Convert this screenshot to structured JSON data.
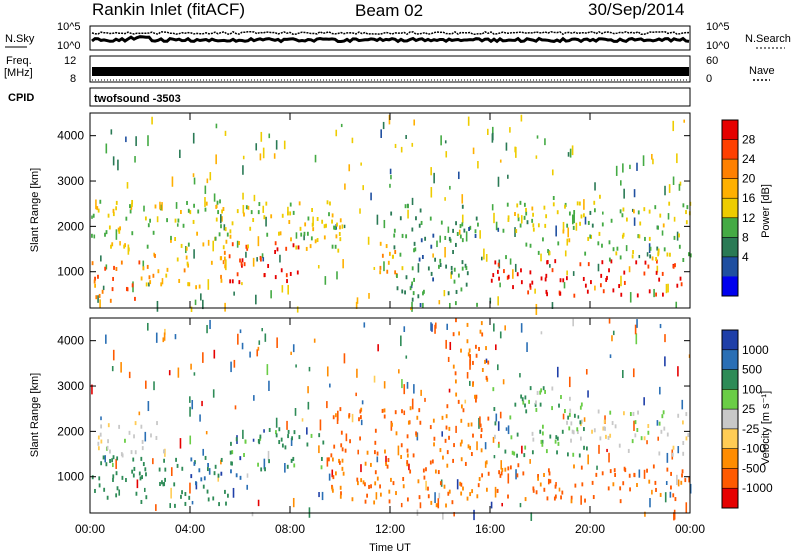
{
  "header": {
    "station": "Rankin Inlet (fitACF)",
    "beam": "Beam 02",
    "date": "30/Sep/2014"
  },
  "noise_panel": {
    "left_label": "N.Sky",
    "left_ticks": [
      "10^5",
      "10^0"
    ],
    "right_label": "N.Search",
    "right_ticks": [
      "10^5",
      "10^0"
    ]
  },
  "freq_panel": {
    "left_label_1": "Freq.",
    "left_label_2": "[MHz]",
    "left_ticks": [
      "12",
      "8"
    ],
    "right_label": "Nave",
    "right_ticks": [
      "60",
      "0"
    ]
  },
  "cpid_panel": {
    "label": "CPID",
    "text": "twofsound -3503"
  },
  "axes": {
    "ylabel": "Slant Range [km]",
    "yticks": [
      "4000",
      "3000",
      "2000",
      "1000"
    ],
    "xlabel": "Time UT",
    "xticks": [
      "00:00",
      "04:00",
      "08:00",
      "12:00",
      "16:00",
      "20:00",
      "00:00"
    ]
  },
  "power_colorbar": {
    "label": "Power [dB]",
    "ticks": [
      "28",
      "24",
      "20",
      "16",
      "12",
      "8",
      "4"
    ],
    "colors": [
      "#e60000",
      "#ff4000",
      "#ff8000",
      "#ffb000",
      "#eecc00",
      "#44aa44",
      "#2a7a55",
      "#1f4fa0",
      "#0000ee"
    ]
  },
  "velocity_colorbar": {
    "label": "Velocity [m s⁻¹]",
    "ticks": [
      "1000",
      "500",
      "100",
      "25",
      "-25",
      "-100",
      "-500",
      "-1000"
    ],
    "colors": [
      "#1f3fa8",
      "#2a6fb5",
      "#2e8b57",
      "#6acd46",
      "#c8c8c8",
      "#ffcc55",
      "#ff8c00",
      "#ff5a00",
      "#e60000"
    ]
  },
  "chart_data": [
    {
      "type": "heatmap",
      "title": "Power [dB]",
      "xlabel": "Time UT",
      "ylabel": "Slant Range [km]",
      "xlim": [
        0,
        24
      ],
      "ylim": [
        200,
        4500
      ],
      "zlim": [
        0,
        30
      ],
      "x": [
        "00:00",
        "04:00",
        "08:00",
        "12:00",
        "16:00",
        "20:00",
        "00:00"
      ],
      "patches": [
        {
          "t0": 0.0,
          "t1": 2.0,
          "r0": 400,
          "r1": 1300,
          "power": 22
        },
        {
          "t0": 2.0,
          "t1": 5.5,
          "r0": 700,
          "r1": 1500,
          "power": 18
        },
        {
          "t0": 5.5,
          "t1": 8.5,
          "r0": 800,
          "r1": 1700,
          "power": 27
        },
        {
          "t0": 8.5,
          "t1": 10.0,
          "r0": 1500,
          "r1": 2200,
          "power": 14
        },
        {
          "t0": 11.5,
          "t1": 12.5,
          "r0": 900,
          "r1": 2100,
          "power": 18
        },
        {
          "t0": 12.0,
          "t1": 15.5,
          "r0": 300,
          "r1": 2500,
          "power": 8
        },
        {
          "t0": 16.0,
          "t1": 24.0,
          "r0": 500,
          "r1": 1300,
          "power": 28
        },
        {
          "t0": 16.5,
          "t1": 24.0,
          "r0": 1300,
          "r1": 2700,
          "power": 12
        },
        {
          "t0": 0.0,
          "t1": 10.0,
          "r0": 1500,
          "r1": 2600,
          "power": 13
        }
      ]
    },
    {
      "type": "heatmap",
      "title": "Velocity [m s⁻¹]",
      "xlabel": "Time UT",
      "ylabel": "Slant Range [km]",
      "xlim": [
        0,
        24
      ],
      "ylim": [
        200,
        4500
      ],
      "zlim": [
        -1000,
        1000
      ],
      "x": [
        "00:00",
        "04:00",
        "08:00",
        "12:00",
        "16:00",
        "20:00",
        "00:00"
      ],
      "patches": [
        {
          "t0": 0.0,
          "t1": 5.5,
          "r0": 400,
          "r1": 1500,
          "velocity": 120
        },
        {
          "t0": 0.0,
          "t1": 3.0,
          "r0": 1500,
          "r1": 2300,
          "velocity": 0
        },
        {
          "t0": 4.0,
          "t1": 6.0,
          "r0": 900,
          "r1": 1500,
          "velocity": 600
        },
        {
          "t0": 5.5,
          "t1": 9.5,
          "r0": 1200,
          "r1": 2100,
          "velocity": 80
        },
        {
          "t0": 9.5,
          "t1": 16.0,
          "r0": 400,
          "r1": 2600,
          "velocity": -300
        },
        {
          "t0": 14.5,
          "t1": 16.0,
          "r0": 2600,
          "r1": 4500,
          "velocity": -300
        },
        {
          "t0": 16.0,
          "t1": 24.0,
          "r0": 500,
          "r1": 1300,
          "velocity": -400
        },
        {
          "t0": 19.0,
          "t1": 24.0,
          "r0": 1500,
          "r1": 2500,
          "velocity": 0
        },
        {
          "t0": 16.0,
          "t1": 20.0,
          "r0": 1500,
          "r1": 3000,
          "velocity": 60
        }
      ]
    }
  ]
}
